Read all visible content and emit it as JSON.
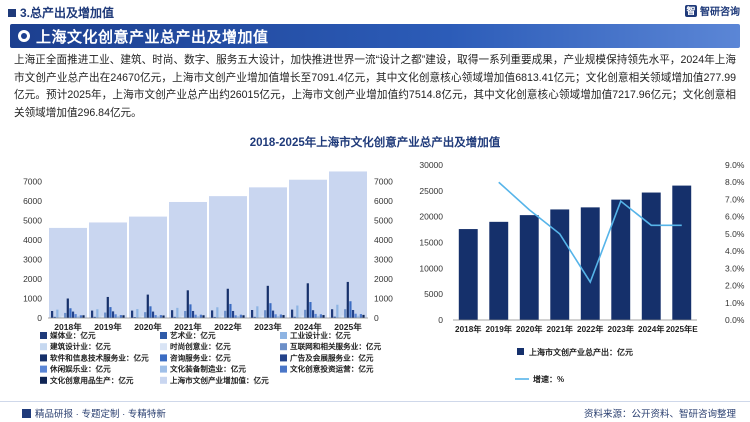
{
  "header": {
    "section": "3.总产出及增加值",
    "brand": "智研咨询",
    "title": "上海文化创意产业总产出及增加值"
  },
  "body": {
    "paragraph": "上海正全面推进工业、建筑、时尚、数字、服务五大设计，加快推进世界一流“设计之都”建设，取得一系列重要成果，产业规模保持领先水平，2024年上海市文创产业总产出在24670亿元，上海市文创产业增加值增长至7091.4亿元，其中文化创意核心领域增加值6813.41亿元；文化创意相关领域增加值277.99亿元。预计2025年，上海市文创产业总产出约26015亿元，上海市文创产业增加值约7514.8亿元，其中文化创意核心领域增加值7217.96亿元；文化创意相关领域增加值296.84亿元。"
  },
  "chart_title": "2018-2025年上海市文化创意产业总产出及增加值",
  "left_chart": {
    "legend": [
      {
        "label": "媒体业：亿元",
        "color": "#1f3a7a"
      },
      {
        "label": "艺术业：亿元",
        "color": "#2e5aa8"
      },
      {
        "label": "工业设计业：亿元",
        "color": "#8eb4e3"
      },
      {
        "label": "建筑设计业：亿元",
        "color": "#c6d8f0"
      },
      {
        "label": "时尚创意业：亿元",
        "color": "#d9e4f5"
      },
      {
        "label": "互联网和相关服务业：亿元",
        "color": "#6c8fc8"
      },
      {
        "label": "软件和信息技术服务业：亿元",
        "color": "#16306a"
      },
      {
        "label": "咨询服务业：亿元",
        "color": "#3b6cc2"
      },
      {
        "label": "广告及会展服务业：亿元",
        "color": "#24428a"
      },
      {
        "label": "休闲娱乐业：亿元",
        "color": "#5b86d6"
      },
      {
        "label": "文化装备制造业：亿元",
        "color": "#9fbfe8"
      },
      {
        "label": "文化创意投资运营：亿元",
        "color": "#4a76c7"
      },
      {
        "label": "文化创意用品生产：亿元",
        "color": "#0f2554"
      },
      {
        "label": "上海市文创产业增加值：亿元",
        "color": "#c9d6f0"
      }
    ]
  },
  "right_chart": {
    "legend_bar": "上海市文创产业总产出：亿元",
    "legend_line": "增速：%"
  },
  "chart_data": [
    {
      "type": "bar",
      "categories": [
        "2018年",
        "2019年",
        "2020年",
        "2021年",
        "2022年",
        "2023年",
        "2024年",
        "2025年"
      ],
      "ylim": [
        0,
        8000
      ],
      "yticks": [
        "0",
        "1000",
        "2000",
        "3000",
        "4000",
        "5000",
        "6000",
        "7000"
      ],
      "y2ticks": [
        "0",
        "1000",
        "2000",
        "3000",
        "4000",
        "5000",
        "6000",
        "7000"
      ],
      "series_total": {
        "name": "上海市文创产业增加值：亿元",
        "values": [
          4620,
          4900,
          5200,
          5950,
          6250,
          6700,
          7091.4,
          7514.8
        ]
      },
      "series": [
        {
          "name": "媒体业：亿元",
          "values": [
            360,
            380,
            380,
            400,
            390,
            410,
            430,
            450
          ]
        },
        {
          "name": "艺术业：亿元",
          "values": [
            60,
            60,
            50,
            60,
            55,
            60,
            65,
            70
          ]
        },
        {
          "name": "工业设计业：亿元",
          "values": [
            430,
            450,
            460,
            520,
            550,
            600,
            640,
            680
          ]
        },
        {
          "name": "建筑设计业：亿元",
          "values": [
            400,
            420,
            430,
            460,
            470,
            480,
            500,
            520
          ]
        },
        {
          "name": "时尚创意业：亿元",
          "values": [
            110,
            110,
            100,
            110,
            115,
            120,
            125,
            130
          ]
        },
        {
          "name": "互联网和相关服务业：亿元",
          "values": [
            260,
            280,
            300,
            360,
            370,
            400,
            420,
            450
          ]
        },
        {
          "name": "软件和信息技术服务业：亿元",
          "values": [
            1000,
            1080,
            1200,
            1420,
            1500,
            1650,
            1780,
            1850
          ]
        },
        {
          "name": "咨询服务业：亿元",
          "values": [
            500,
            560,
            600,
            700,
            720,
            760,
            820,
            860
          ]
        },
        {
          "name": "广告及会展服务业：亿元",
          "values": [
            330,
            340,
            330,
            360,
            360,
            380,
            400,
            410
          ]
        },
        {
          "name": "休闲娱乐业：亿元",
          "values": [
            200,
            190,
            150,
            170,
            140,
            190,
            210,
            220
          ]
        },
        {
          "name": "文化装备制造业：亿元",
          "values": [
            90,
            95,
            90,
            100,
            100,
            105,
            110,
            115
          ]
        },
        {
          "name": "文化创意投资运营：亿元",
          "values": [
            140,
            150,
            150,
            170,
            170,
            180,
            190,
            200
          ]
        },
        {
          "name": "文化创意用品生产：亿元",
          "values": [
            140,
            140,
            130,
            140,
            140,
            150,
            150,
            160
          ]
        }
      ]
    },
    {
      "type": "bar",
      "categories": [
        "2018年",
        "2019年",
        "2020年",
        "2021年",
        "2022年",
        "2023年",
        "2024年",
        "2025年E"
      ],
      "ylim": [
        0,
        30000
      ],
      "yticks": [
        "0",
        "5000",
        "10000",
        "15000",
        "20000",
        "25000",
        "30000"
      ],
      "y2lim": [
        0,
        9
      ],
      "y2ticks": [
        "0.0%",
        "1.0%",
        "2.0%",
        "3.0%",
        "4.0%",
        "5.0%",
        "6.0%",
        "7.0%",
        "8.0%",
        "9.0%"
      ],
      "bars": {
        "name": "上海市文创产业总产出：亿元",
        "values": [
          17600,
          19000,
          20300,
          21400,
          21800,
          23300,
          24670,
          26015
        ]
      },
      "line": {
        "name": "增速：%",
        "values": [
          null,
          8.0,
          6.4,
          5.0,
          2.2,
          6.9,
          5.5,
          5.5
        ]
      }
    }
  ],
  "footer": {
    "left": "精品研报 · 专题定制 · 专精特新",
    "right": "资料来源：公开资料、智研咨询整理"
  }
}
